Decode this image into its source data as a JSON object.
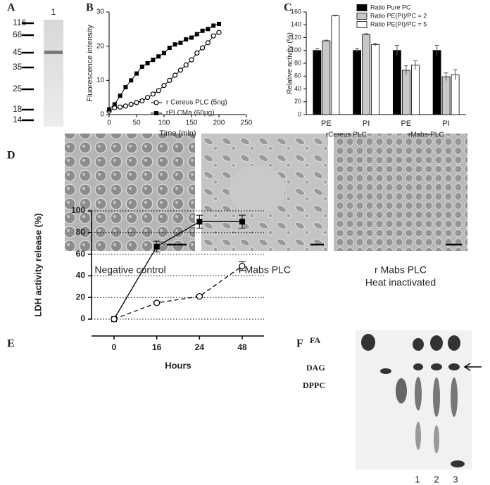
{
  "panel_a": {
    "letter": "A",
    "lane": "1",
    "markers": [
      116,
      66,
      45,
      35,
      25,
      18,
      14
    ]
  },
  "chart_data": [
    {
      "type": "line",
      "label": "B",
      "xlabel": "Time (min)",
      "ylabel": "Fluorescence intensity",
      "x": [
        0,
        10,
        20,
        30,
        40,
        50,
        60,
        70,
        80,
        90,
        100,
        110,
        120,
        130,
        140,
        150,
        160,
        170,
        180,
        190,
        200
      ],
      "xlim": [
        0,
        250
      ],
      "xticks": [
        0,
        50,
        100,
        150,
        200,
        250
      ],
      "ylim": [
        0,
        30
      ],
      "yticks": [
        0,
        10,
        20,
        30
      ],
      "series": [
        {
          "name": "r Cereus PLC (5ng)",
          "color": "#000000",
          "marker": "circle-open",
          "values": [
            1,
            2,
            2.2,
            2.5,
            3,
            3.5,
            4,
            5,
            6,
            7,
            8.5,
            10,
            11.5,
            13,
            14.5,
            16,
            18,
            19.5,
            21,
            23,
            24
          ]
        },
        {
          "name": "rPLCMa (60µg)",
          "color": "#000000",
          "marker": "square",
          "values": [
            1.5,
            3,
            5.5,
            8,
            10,
            12,
            14,
            15,
            16,
            17,
            18,
            19.5,
            20.5,
            21,
            22,
            22.5,
            23.5,
            24.5,
            25,
            26,
            26.5
          ]
        }
      ]
    },
    {
      "type": "bar",
      "label": "C",
      "ylabel": "Relative activity (%)",
      "categories": [
        "PE",
        "PI",
        "PE",
        "PI"
      ],
      "groups": [
        "rCereus PLC",
        "rMabs-PLC"
      ],
      "ylim": [
        0,
        160
      ],
      "yticks": [
        0,
        20,
        40,
        60,
        80,
        100,
        120,
        140,
        160
      ],
      "series": [
        {
          "name": "Ratio Pure PC",
          "color": "#000000",
          "values": [
            100,
            100,
            100,
            100
          ],
          "errors": [
            3,
            3,
            8,
            8
          ]
        },
        {
          "name": "Ratio PE(PI)/PC = 2",
          "color": "#c8c8c8",
          "values": [
            115,
            125,
            69,
            59
          ],
          "errors": [
            1,
            1,
            7,
            6
          ]
        },
        {
          "name": "Ratio PE(PI)/PC = 5",
          "color": "#ffffff",
          "values": [
            154,
            109,
            77,
            62
          ],
          "errors": [
            1,
            2,
            7,
            8
          ]
        }
      ]
    },
    {
      "type": "line",
      "label": "E",
      "xlabel": "Hours",
      "ylabel": "LDH activity release (%)",
      "categories": [
        "0",
        "16",
        "24",
        "48"
      ],
      "ylim": [
        0,
        100
      ],
      "yticks": [
        0,
        20,
        40,
        60,
        80,
        100
      ],
      "grid": "dotted",
      "series": [
        {
          "color": "#000000",
          "marker": "square",
          "dash": false,
          "values": [
            0,
            67,
            90,
            90
          ],
          "errors": [
            0,
            5,
            6,
            6
          ]
        },
        {
          "color": "#000000",
          "marker": "circle-open",
          "dash": true,
          "values": [
            0,
            15,
            21,
            49
          ],
          "errors": [
            0,
            1,
            1,
            4
          ]
        }
      ]
    }
  ],
  "panel_d": {
    "letter": "D",
    "captions": [
      [
        "Negative control"
      ],
      [
        "r Mabs PLC"
      ],
      [
        "r Mabs PLC",
        "Heat inactivated"
      ]
    ]
  },
  "panel_f": {
    "letter": "F",
    "spots": [
      "FA",
      "DAG",
      "DPPC"
    ],
    "lanes": [
      "1",
      "2",
      "3"
    ]
  }
}
